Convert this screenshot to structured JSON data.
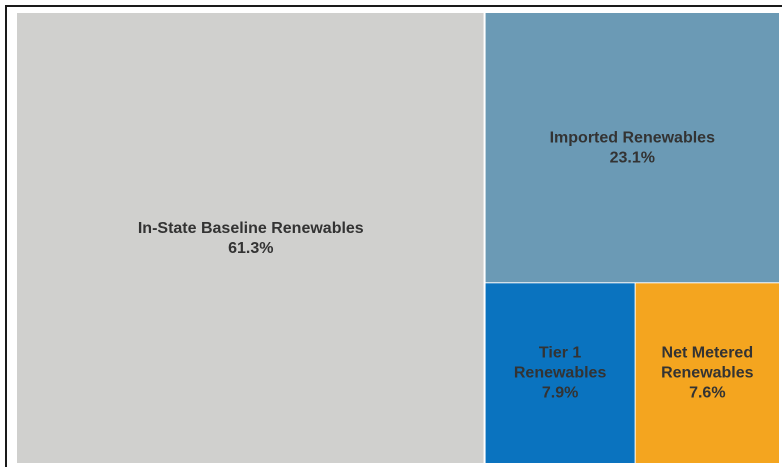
{
  "chart_data": {
    "type": "treemap",
    "title": "",
    "categories": [
      "In-State Baseline Renewables",
      "Imported Renewables",
      "Tier 1 Renewables",
      "Net Metered Renewables"
    ],
    "values": [
      61.3,
      23.1,
      7.9,
      7.6
    ],
    "unit": "%",
    "tiles": [
      {
        "label_lines": [
          "In-State Baseline Renewables"
        ],
        "value_label": "61.3%",
        "value": 61.3,
        "color": "#d0d0ce",
        "text_color": "#333333"
      },
      {
        "label_lines": [
          "Imported Renewables"
        ],
        "value_label": "23.1%",
        "value": 23.1,
        "color": "#6b9ab5",
        "text_color": "#333333"
      },
      {
        "label_lines": [
          "Tier 1",
          "Renewables"
        ],
        "value_label": "7.9%",
        "value": 7.9,
        "color": "#0a73bf",
        "text_color": "#333333"
      },
      {
        "label_lines": [
          "Net Metered",
          "Renewables"
        ],
        "value_label": "7.6%",
        "value": 7.6,
        "color": "#f4a51f",
        "text_color": "#333333"
      }
    ]
  }
}
